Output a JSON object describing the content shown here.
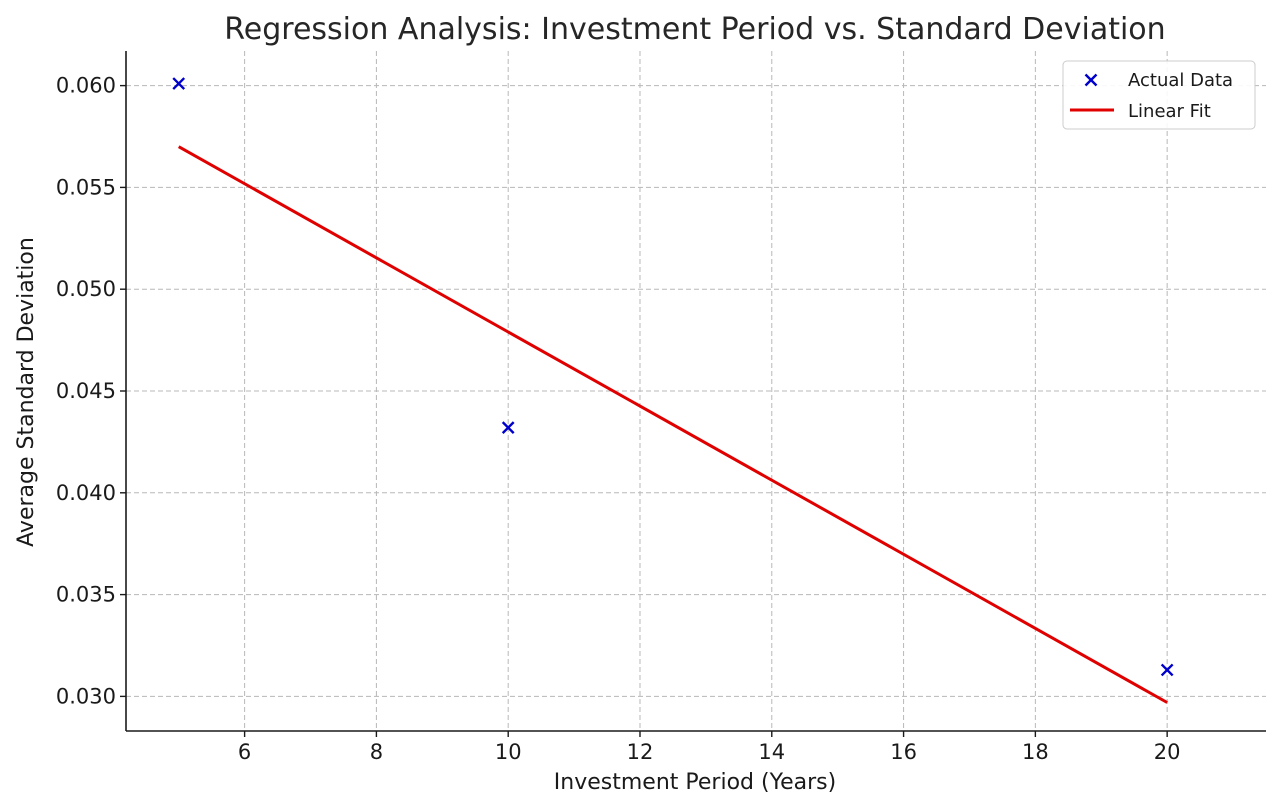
{
  "chart_data": {
    "type": "scatter",
    "title": "Regression Analysis: Investment Period vs. Standard Deviation",
    "xlabel": "Investment Period (Years)",
    "ylabel": "Average Standard Deviation",
    "xlim": [
      4.2,
      21.5
    ],
    "ylim": [
      0.0283,
      0.0617
    ],
    "xticks": [
      6,
      8,
      10,
      12,
      14,
      16,
      18,
      20
    ],
    "yticks": [
      0.03,
      0.035,
      0.04,
      0.045,
      0.05,
      0.055,
      0.06
    ],
    "ytick_labels": [
      "0.030",
      "0.035",
      "0.040",
      "0.045",
      "0.050",
      "0.055",
      "0.060"
    ],
    "grid": true,
    "legend_position": "top-right",
    "series": [
      {
        "name": "Actual Data",
        "kind": "scatter",
        "marker": "x",
        "color": "#0000cc",
        "x": [
          5,
          10,
          20
        ],
        "y": [
          0.0601,
          0.0432,
          0.0313
        ]
      },
      {
        "name": "Linear Fit",
        "kind": "line",
        "color": "#e00000",
        "x": [
          5,
          20
        ],
        "y": [
          0.057,
          0.0297
        ]
      }
    ]
  }
}
